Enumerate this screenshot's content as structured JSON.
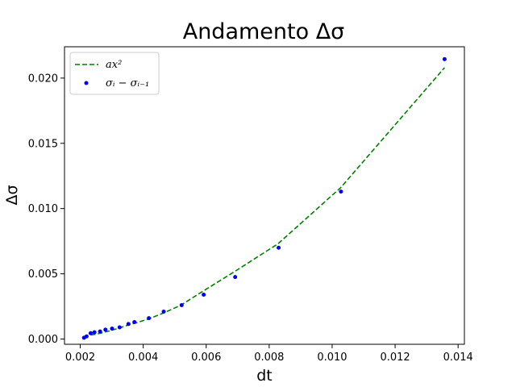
{
  "chart_data": {
    "type": "scatter",
    "title": "Andamento Δσ",
    "xlabel": "dt",
    "ylabel": "Δσ",
    "xlim": [
      0.0015,
      0.0142
    ],
    "ylim": [
      -0.0004,
      0.0224
    ],
    "xticks": [
      0.002,
      0.004,
      0.006,
      0.008,
      0.01,
      0.012,
      0.014
    ],
    "xtick_labels": [
      "0.002",
      "0.004",
      "0.006",
      "0.008",
      "0.010",
      "0.012",
      "0.014"
    ],
    "yticks": [
      0.0,
      0.005,
      0.01,
      0.015,
      0.02
    ],
    "ytick_labels": [
      "0.000",
      "0.005",
      "0.010",
      "0.015",
      "0.020"
    ],
    "grid": false,
    "legend_position": "top-left",
    "series": [
      {
        "name": "ax²",
        "kind": "line",
        "style": "dashed",
        "color": "#008000",
        "x": [
          0.00212,
          0.00225,
          0.00238,
          0.00251,
          0.00265,
          0.00281,
          0.00301,
          0.00325,
          0.00353,
          0.00372,
          0.00418,
          0.00465,
          0.0052,
          0.00592,
          0.00692,
          0.00828,
          0.01027,
          0.01357
        ],
        "y": [
          0.0001,
          0.00025,
          0.00033,
          0.00038,
          0.00045,
          0.00055,
          0.00068,
          0.00085,
          0.00108,
          0.0012,
          0.00155,
          0.002,
          0.0026,
          0.0037,
          0.0052,
          0.0073,
          0.0116,
          0.0208
        ]
      },
      {
        "name": "σᵢ − σᵢ₋₁",
        "kind": "scatter",
        "color": "#0000ff",
        "x": [
          0.00212,
          0.0022,
          0.00233,
          0.00245,
          0.00263,
          0.0028,
          0.00301,
          0.00325,
          0.00353,
          0.00372,
          0.00418,
          0.00465,
          0.00522,
          0.00592,
          0.00692,
          0.0083,
          0.01028,
          0.01357
        ],
        "y": [
          0.0001,
          0.0002,
          0.00045,
          0.00052,
          0.00058,
          0.00072,
          0.0008,
          0.0009,
          0.00115,
          0.0013,
          0.0016,
          0.0021,
          0.0026,
          0.0034,
          0.00475,
          0.007,
          0.0113,
          0.02145
        ]
      }
    ]
  }
}
